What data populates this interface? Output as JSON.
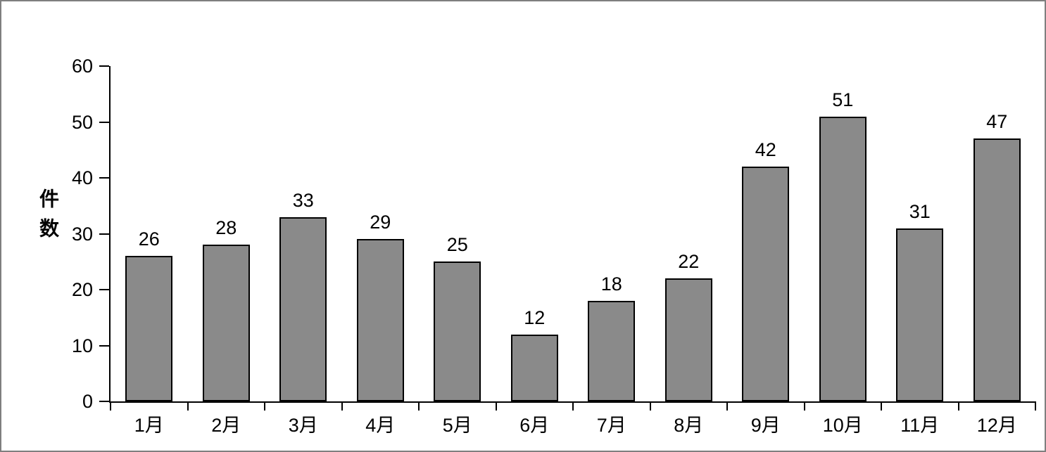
{
  "chart_data": {
    "type": "bar",
    "categories": [
      "1月",
      "2月",
      "3月",
      "4月",
      "5月",
      "6月",
      "7月",
      "8月",
      "9月",
      "10月",
      "11月",
      "12月"
    ],
    "values": [
      26,
      28,
      33,
      29,
      25,
      12,
      18,
      22,
      42,
      51,
      31,
      47
    ],
    "title": "",
    "xlabel": "",
    "ylabel": "件数",
    "ylim": [
      0,
      60
    ],
    "ytick_step": 10,
    "ytick_labels": [
      "0",
      "10",
      "20",
      "30",
      "40",
      "50",
      "60"
    ],
    "grid": false,
    "legend_position": "none",
    "value_labels_shown": true
  },
  "colors": {
    "background": "#ffffff",
    "frame_border": "#7f7f7f",
    "bar_fill": "#8a8a8a",
    "bar_border": "#000000",
    "axis": "#000000",
    "text": "#000000"
  }
}
